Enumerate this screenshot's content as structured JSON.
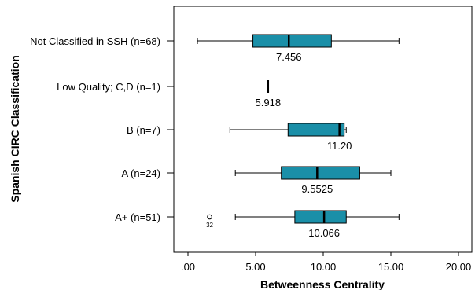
{
  "chart_data": {
    "type": "boxplot",
    "orientation": "horizontal",
    "xlabel": "Betweenness Centrality",
    "ylabel": "Spanish CIRC Classification",
    "xlim": [
      0,
      20
    ],
    "xticks": [
      ".00",
      "5.00",
      "10.00",
      "15.00",
      "20.00"
    ],
    "xtick_values": [
      0,
      5,
      10,
      15,
      20
    ],
    "box_color": "#1a8fa8",
    "categories": [
      {
        "label": "Not Classified in SSH (n=68)",
        "min": 0.7,
        "q1": 4.8,
        "median": 7.456,
        "q3": 10.6,
        "max": 15.6,
        "median_label": "7.456",
        "outliers": []
      },
      {
        "label": "Low Quality; C,D (n=1)",
        "min": null,
        "q1": null,
        "median": 5.918,
        "q3": null,
        "max": null,
        "median_label": "5.918",
        "outliers": []
      },
      {
        "label": "B (n=7)",
        "min": 3.1,
        "q1": 7.4,
        "median": 11.2,
        "q3": 11.55,
        "max": 11.7,
        "median_label": "11.20",
        "outliers": []
      },
      {
        "label": "A (n=24)",
        "min": 3.5,
        "q1": 6.9,
        "median": 9.5525,
        "q3": 12.7,
        "max": 15.0,
        "median_label": "9.5525",
        "outliers": []
      },
      {
        "label": "A+ (n=51)",
        "min": 3.5,
        "q1": 7.9,
        "median": 10.066,
        "q3": 11.7,
        "max": 15.6,
        "median_label": "10.066",
        "outliers": [
          {
            "value": 1.6,
            "label": "32"
          }
        ]
      }
    ]
  }
}
